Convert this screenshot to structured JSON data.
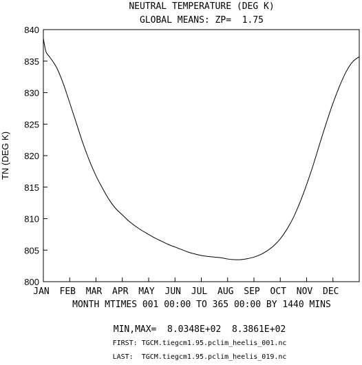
{
  "chart_data": {
    "type": "line",
    "title": "NEUTRAL TEMPERATURE (DEG K)",
    "subtitle": "GLOBAL MEANS: ZP=  1.75",
    "ylabel": "TN (DEG K)",
    "xlabel": "MONTH MTIMES 001 00:00 TO 365 00:00 BY 1440 MINS",
    "ylim": [
      800,
      840
    ],
    "xlim": [
      0,
      12
    ],
    "yticks": [
      800,
      805,
      810,
      815,
      820,
      825,
      830,
      835,
      840
    ],
    "ytick_labels": [
      "800",
      "805",
      "810",
      "815",
      "820",
      "825",
      "830",
      "835",
      "840"
    ],
    "month_labels": [
      "JAN",
      "FEB",
      "MAR",
      "APR",
      "MAY",
      "JUN",
      "JUL",
      "AUG",
      "SEP",
      "OCT",
      "NOV",
      "DEC"
    ],
    "grid": false,
    "series": [
      {
        "x": [
          0,
          0.1,
          0.25,
          0.5,
          0.75,
          1.0,
          1.25,
          1.5,
          1.75,
          2.0,
          2.25,
          2.5,
          2.75,
          3.0,
          3.25,
          3.5,
          3.75,
          4.0,
          4.25,
          4.5,
          4.75,
          5.0,
          5.25,
          5.5,
          5.75,
          6.0,
          6.25,
          6.5,
          6.75,
          7.0,
          7.25,
          7.5,
          7.75,
          8.0,
          8.25,
          8.5,
          8.75,
          9.0,
          9.25,
          9.5,
          9.75,
          10.0,
          10.25,
          10.5,
          10.75,
          11.0,
          11.25,
          11.5,
          11.75,
          12.0
        ],
        "values": [
          838.6,
          836.5,
          835.6,
          834.0,
          831.5,
          828.4,
          825.2,
          822.0,
          819.2,
          816.8,
          814.8,
          813.0,
          811.6,
          810.6,
          809.6,
          808.8,
          808.1,
          807.5,
          806.9,
          806.4,
          805.9,
          805.5,
          805.1,
          804.7,
          804.4,
          804.15,
          804.0,
          803.9,
          803.8,
          803.6,
          803.5,
          803.5,
          803.65,
          803.9,
          804.3,
          804.9,
          805.7,
          806.8,
          808.3,
          810.2,
          812.6,
          815.4,
          818.5,
          821.9,
          825.2,
          828.3,
          831.0,
          833.3,
          834.9,
          835.7
        ]
      }
    ]
  },
  "footer": {
    "minmax": "MIN,MAX=  8.0348E+02  8.3861E+02",
    "first": "FIRST: TGCM.tiegcm1.95.pclim_heelis_001.nc",
    "last": "LAST:  TGCM.tiegcm1.95.pclim_heelis_019.nc"
  }
}
